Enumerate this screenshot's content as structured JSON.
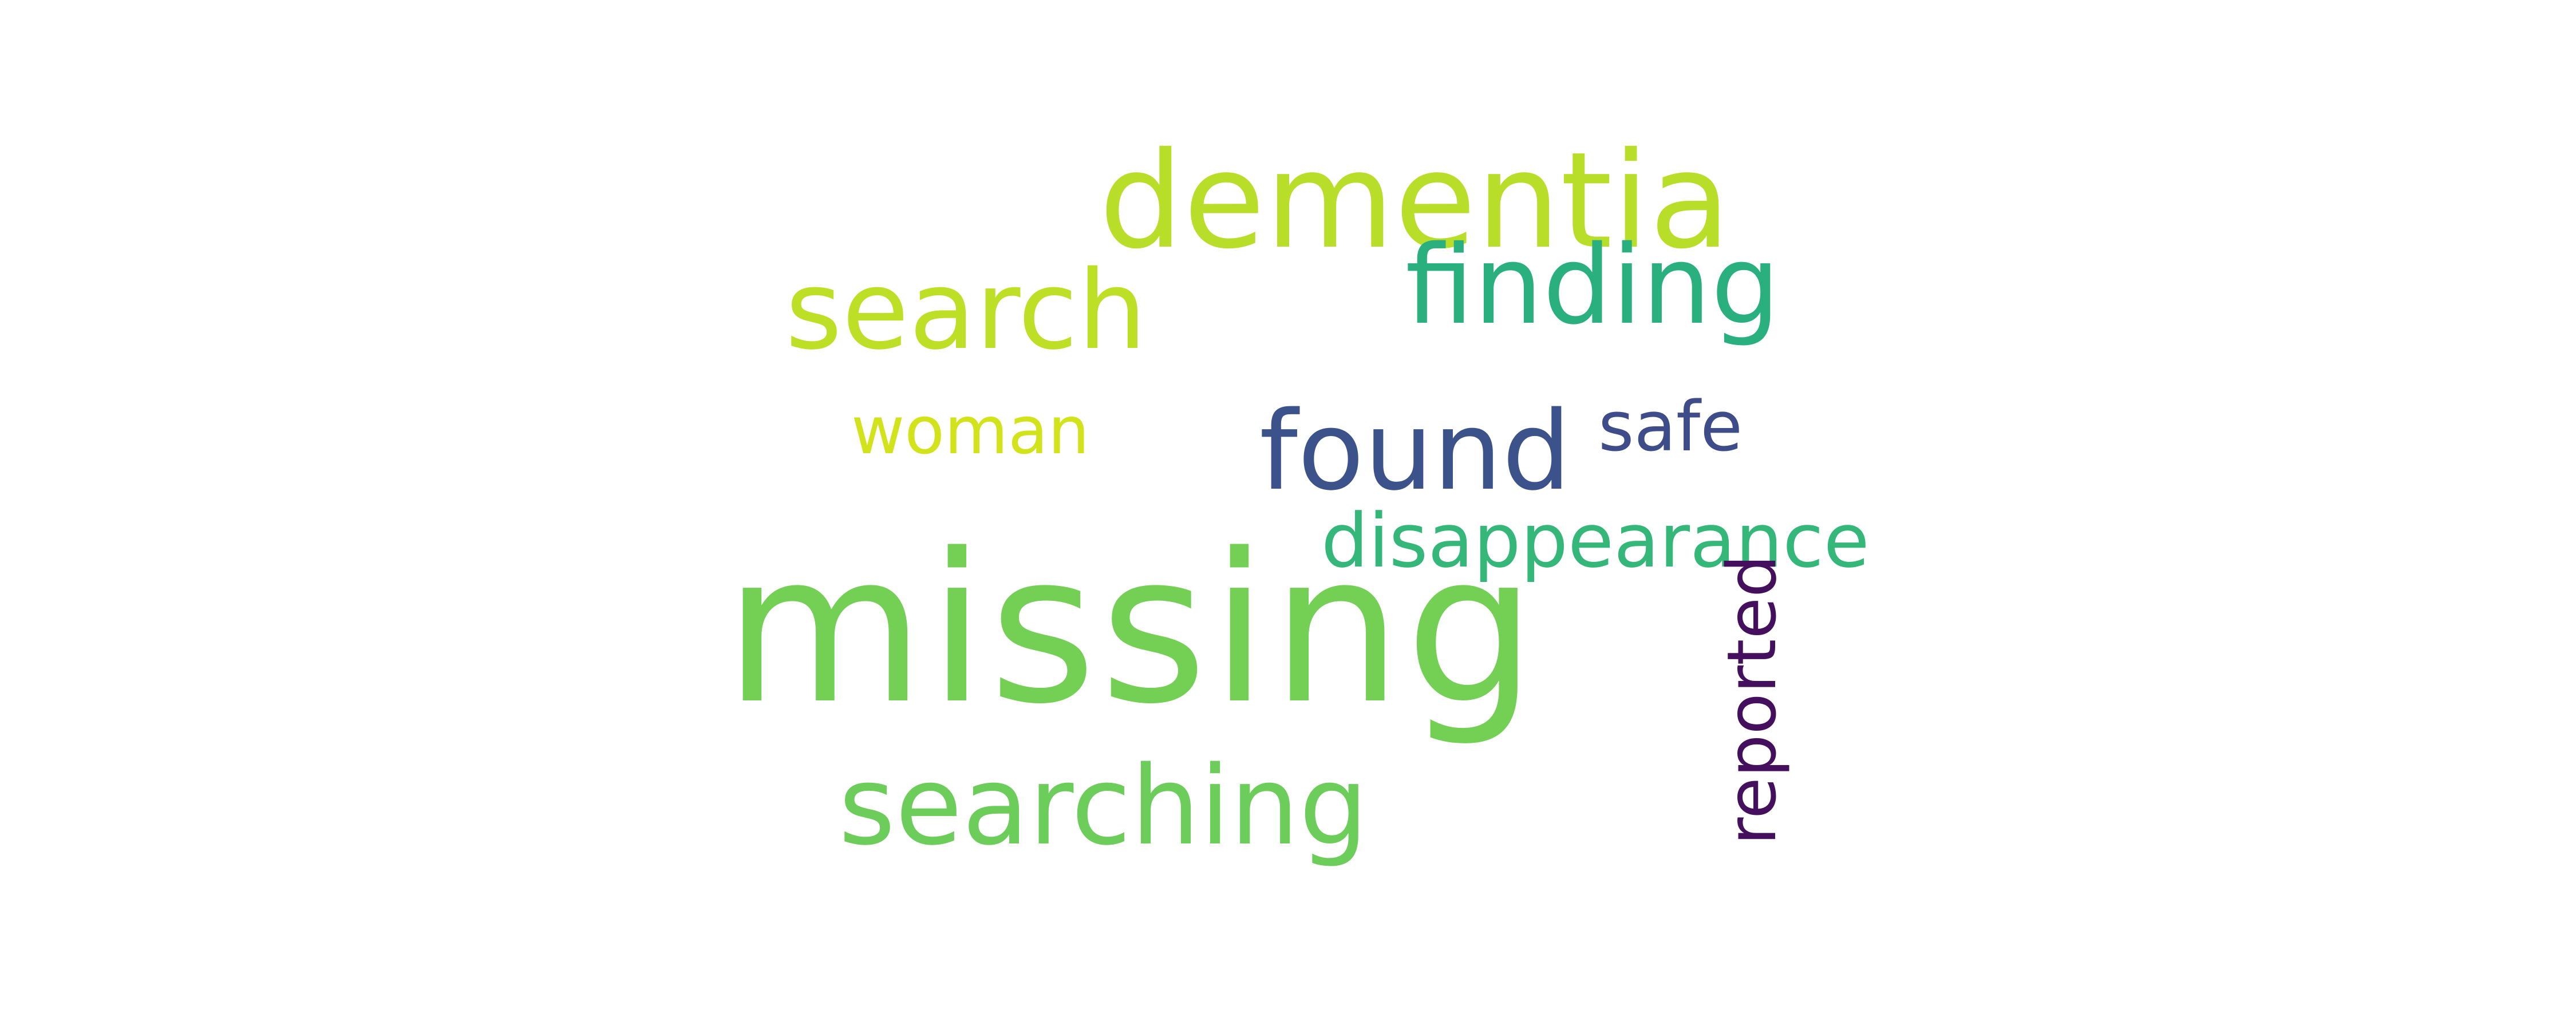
{
  "wordcloud": {
    "words": [
      {
        "id": "missing",
        "text": "missing",
        "color": "#74d055"
      },
      {
        "id": "dementia",
        "text": "dementia",
        "color": "#b8de29"
      },
      {
        "id": "search",
        "text": "search",
        "color": "#bddf26"
      },
      {
        "id": "finding",
        "text": "finding",
        "color": "#2ab07f"
      },
      {
        "id": "found",
        "text": "found",
        "color": "#3b528b"
      },
      {
        "id": "safe",
        "text": "safe",
        "color": "#3e4c8a"
      },
      {
        "id": "woman",
        "text": "woman",
        "color": "#d2e21b"
      },
      {
        "id": "disappearance",
        "text": "disappearance",
        "color": "#35b779"
      },
      {
        "id": "searching",
        "text": "searching",
        "color": "#6ccd5a"
      },
      {
        "id": "reported",
        "text": "reported",
        "color": "#440f5c"
      }
    ]
  }
}
